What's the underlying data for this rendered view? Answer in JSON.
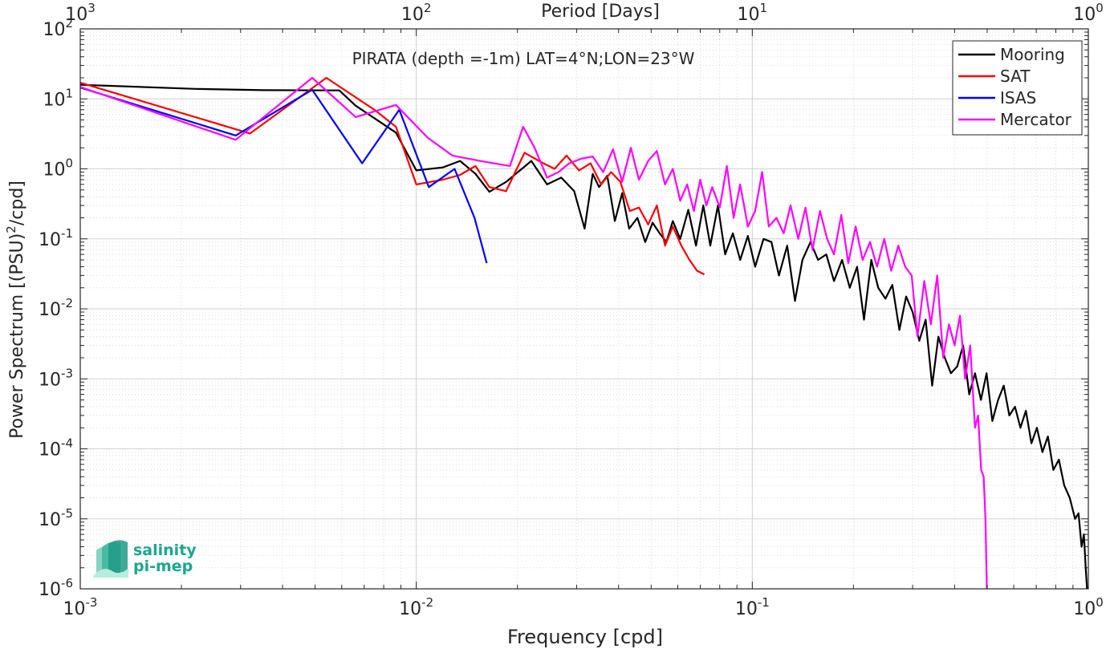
{
  "chart_data": {
    "type": "line",
    "title": "PIRATA (depth =-1m) LAT=4°N;LON=23°W",
    "xlabel": "Frequency [cpd]",
    "ylabel": "Power Spectrum [(PSU)^2/cpd]",
    "top_xlabel": "Period [Days]",
    "xscale": "log",
    "yscale": "log",
    "xlim": [
      0.001,
      1
    ],
    "ylim": [
      1e-06,
      100
    ],
    "grid": true,
    "legend_position": "top-right",
    "x_ticks": [
      {
        "base": "10",
        "exp": "-3"
      },
      {
        "base": "10",
        "exp": "-2"
      },
      {
        "base": "10",
        "exp": "-1"
      },
      {
        "base": "10",
        "exp": "0"
      }
    ],
    "top_ticks": [
      {
        "base": "10",
        "exp": "3"
      },
      {
        "base": "10",
        "exp": "2"
      },
      {
        "base": "10",
        "exp": "1"
      },
      {
        "base": "10",
        "exp": "0"
      }
    ],
    "y_ticks": [
      {
        "base": "10",
        "exp": "2"
      },
      {
        "base": "10",
        "exp": "1"
      },
      {
        "base": "10",
        "exp": "0"
      },
      {
        "base": "10",
        "exp": "-1"
      },
      {
        "base": "10",
        "exp": "-2"
      },
      {
        "base": "10",
        "exp": "-3"
      },
      {
        "base": "10",
        "exp": "-4"
      },
      {
        "base": "10",
        "exp": "-5"
      },
      {
        "base": "10",
        "exp": "-6"
      }
    ],
    "series": [
      {
        "name": "Mooring",
        "color": "#000000",
        "x": [
          0.001,
          0.0022,
          0.0035,
          0.0059,
          0.0066,
          0.0075,
          0.0087,
          0.01,
          0.012,
          0.0135,
          0.015,
          0.0165,
          0.0185,
          0.022,
          0.0245,
          0.027,
          0.0295,
          0.0317,
          0.0335,
          0.035,
          0.037,
          0.039,
          0.041,
          0.043,
          0.0455,
          0.048,
          0.0505,
          0.053,
          0.0555,
          0.058,
          0.061,
          0.0645,
          0.068,
          0.0715,
          0.075,
          0.079,
          0.083,
          0.0875,
          0.092,
          0.097,
          0.102,
          0.108,
          0.114,
          0.12,
          0.127,
          0.134,
          0.141,
          0.149,
          0.157,
          0.166,
          0.175,
          0.185,
          0.195,
          0.205,
          0.215,
          0.226,
          0.237,
          0.249,
          0.261,
          0.274,
          0.287,
          0.3,
          0.314,
          0.328,
          0.343,
          0.358,
          0.374,
          0.39,
          0.407,
          0.424,
          0.442,
          0.46,
          0.479,
          0.498,
          0.518,
          0.539,
          0.56,
          0.582,
          0.605,
          0.628,
          0.652,
          0.677,
          0.703,
          0.73,
          0.758,
          0.787,
          0.817,
          0.848,
          0.88,
          0.913,
          0.935,
          0.955,
          0.97,
          0.982,
          0.991
        ],
        "y": [
          15.9,
          13.9,
          13.3,
          13.2,
          8.0,
          5.3,
          3.3,
          0.95,
          1.05,
          1.3,
          0.85,
          0.47,
          0.65,
          1.3,
          0.6,
          0.75,
          0.48,
          0.14,
          0.85,
          0.55,
          0.8,
          0.18,
          0.45,
          0.14,
          0.2,
          0.09,
          0.17,
          0.12,
          0.09,
          0.18,
          0.1,
          0.26,
          0.08,
          0.3,
          0.08,
          0.3,
          0.06,
          0.12,
          0.05,
          0.11,
          0.04,
          0.1,
          0.09,
          0.03,
          0.08,
          0.013,
          0.05,
          0.09,
          0.05,
          0.06,
          0.025,
          0.05,
          0.02,
          0.04,
          0.007,
          0.05,
          0.02,
          0.014,
          0.022,
          0.005,
          0.015,
          0.009,
          0.0035,
          0.007,
          0.0008,
          0.004,
          0.002,
          0.0012,
          0.0015,
          0.003,
          0.0006,
          0.0012,
          0.0005,
          0.0012,
          0.00025,
          0.0005,
          0.0008,
          0.0003,
          0.0004,
          0.0002,
          0.00035,
          0.00012,
          0.0002,
          9e-05,
          0.00015,
          5e-05,
          7e-05,
          3e-05,
          2e-05,
          1e-05,
          1.2e-05,
          4e-06,
          6e-06,
          2e-06,
          1e-06
        ]
      },
      {
        "name": "SAT",
        "color": "#ff0000",
        "x": [
          0.001,
          0.0032,
          0.0054,
          0.0075,
          0.0087,
          0.01,
          0.012,
          0.0135,
          0.015,
          0.0165,
          0.0185,
          0.021,
          0.0235,
          0.0258,
          0.028,
          0.0305,
          0.033,
          0.0355,
          0.038,
          0.0405,
          0.0432,
          0.046,
          0.049,
          0.052,
          0.055,
          0.058,
          0.0615,
          0.065,
          0.0685,
          0.072
        ],
        "y": [
          17.0,
          3.2,
          20.0,
          7.0,
          4.0,
          0.6,
          0.7,
          0.82,
          1.1,
          0.55,
          0.48,
          1.7,
          1.25,
          1.0,
          1.55,
          0.95,
          1.2,
          0.6,
          0.9,
          0.65,
          0.25,
          0.28,
          0.16,
          0.3,
          0.08,
          0.15,
          0.08,
          0.05,
          0.035,
          0.031
        ]
      },
      {
        "name": "ISAS",
        "color": "#0000ff",
        "x": [
          0.001,
          0.0029,
          0.0049,
          0.0069,
          0.0089,
          0.0109,
          0.013,
          0.0149,
          0.0162
        ],
        "y": [
          14.5,
          3.0,
          13.5,
          1.2,
          7.0,
          0.55,
          1.0,
          0.2,
          0.045
        ]
      },
      {
        "name": "Mercator",
        "color": "#ff00ff",
        "x": [
          0.001,
          0.0029,
          0.0049,
          0.0066,
          0.0087,
          0.0108,
          0.0128,
          0.0148,
          0.017,
          0.019,
          0.0208,
          0.0225,
          0.0245,
          0.0265,
          0.0285,
          0.031,
          0.0335,
          0.036,
          0.0385,
          0.041,
          0.0435,
          0.046,
          0.049,
          0.052,
          0.055,
          0.058,
          0.061,
          0.064,
          0.067,
          0.07,
          0.073,
          0.076,
          0.08,
          0.084,
          0.088,
          0.092,
          0.097,
          0.102,
          0.107,
          0.112,
          0.118,
          0.124,
          0.13,
          0.137,
          0.144,
          0.151,
          0.159,
          0.167,
          0.175,
          0.184,
          0.193,
          0.203,
          0.213,
          0.224,
          0.235,
          0.247,
          0.259,
          0.272,
          0.285,
          0.298,
          0.31,
          0.325,
          0.34,
          0.355,
          0.37,
          0.385,
          0.4,
          0.415,
          0.43,
          0.445,
          0.46,
          0.47,
          0.48,
          0.488,
          0.494,
          0.499
        ],
        "y": [
          14.8,
          2.6,
          20.0,
          5.5,
          8.2,
          2.8,
          1.55,
          1.35,
          1.2,
          1.1,
          4.0,
          2.0,
          0.75,
          0.9,
          1.2,
          1.4,
          1.5,
          0.9,
          1.9,
          0.65,
          2.0,
          0.7,
          1.3,
          1.8,
          0.6,
          1.0,
          0.35,
          0.6,
          0.25,
          0.7,
          0.3,
          0.55,
          0.28,
          1.1,
          0.2,
          0.6,
          0.15,
          0.25,
          0.9,
          0.15,
          0.2,
          0.12,
          0.3,
          0.1,
          0.28,
          0.07,
          0.25,
          0.1,
          0.06,
          0.22,
          0.045,
          0.15,
          0.05,
          0.09,
          0.04,
          0.1,
          0.035,
          0.08,
          0.04,
          0.03,
          0.004,
          0.025,
          0.006,
          0.03,
          0.002,
          0.006,
          0.003,
          0.008,
          0.001,
          0.003,
          0.0002,
          0.0003,
          5e-05,
          4e-05,
          1e-05,
          1e-06
        ]
      }
    ]
  },
  "logo": {
    "line1": "salinity",
    "line2": "pi-mep"
  }
}
